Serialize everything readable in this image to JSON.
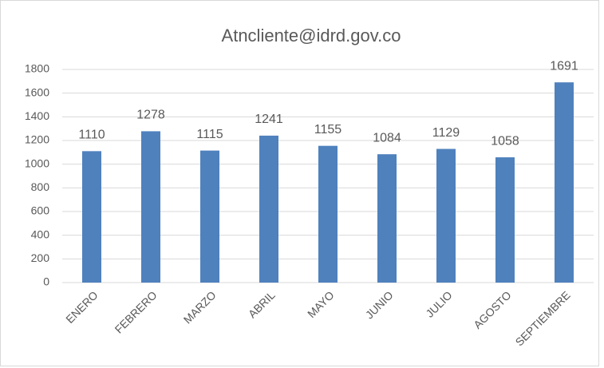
{
  "chart_data": {
    "type": "bar",
    "title": "Atncliente@idrd.gov.co",
    "categories": [
      "ENERO",
      "FEBRERO",
      "MARZO",
      "ABRIL",
      "MAYO",
      "JUNIO",
      "JULIO",
      "AGOSTO",
      "SEPTIEMBRE"
    ],
    "values": [
      1110,
      1278,
      1115,
      1241,
      1155,
      1084,
      1129,
      1058,
      1691
    ],
    "color": "#4f81bd",
    "ylim": [
      0,
      1800
    ],
    "yticks": [
      0,
      200,
      400,
      600,
      800,
      1000,
      1200,
      1400,
      1600,
      1800
    ],
    "grid": true
  }
}
